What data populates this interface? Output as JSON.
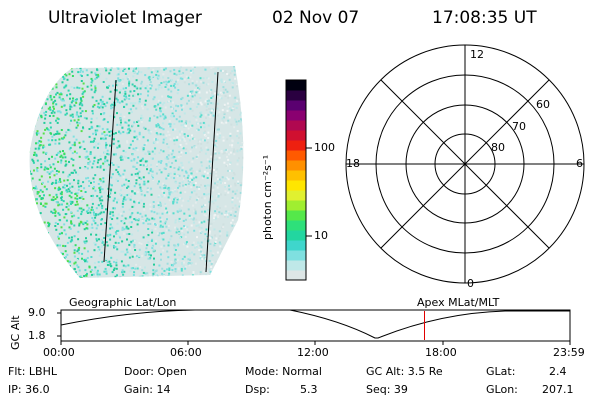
{
  "header": {
    "title": "Ultraviolet Imager",
    "date": "02 Nov 07",
    "time": "17:08:35 UT"
  },
  "colorbar": {
    "unit_label": "photon cm⁻²s⁻¹",
    "ticks": [
      "100",
      "10"
    ],
    "colors": [
      "#dde6e6",
      "#bfe8e8",
      "#7fe0e0",
      "#3fd6cc",
      "#22d6a0",
      "#2ee07a",
      "#55e84a",
      "#a0ee30",
      "#e0f030",
      "#ffe600",
      "#ffc000",
      "#ff9000",
      "#ff5a00",
      "#ee2010",
      "#d01030",
      "#b00850",
      "#8a0070",
      "#5a0070",
      "#2a0040",
      "#000010"
    ]
  },
  "polar": {
    "ring_labels": [
      "60",
      "70",
      "80"
    ],
    "clock_labels": {
      "top": "12",
      "left": "18",
      "right": "6",
      "bottom": "0"
    }
  },
  "orbit_panel": {
    "y_axis_label": "GC Alt",
    "y_ticks": [
      "9.0",
      "1.8"
    ],
    "left_title": "Geographic Lat/Lon",
    "right_title": "Apex MLat/MLT",
    "x_ticks": [
      "00:00",
      "06:00",
      "12:00",
      "18:00",
      "23:59"
    ],
    "marker_hour": 17.14
  },
  "status": {
    "flt": "Flt: LBHL",
    "ip": "IP: 36.0",
    "door": "Door: Open",
    "gain": "Gain: 14",
    "mode": "Mode: Normal",
    "dsp_label": "Dsp:",
    "dsp_value": "5.3",
    "gc_alt": "GC Alt: 3.5 Re",
    "seq": "Seq: 39",
    "glat_label": "GLat:",
    "glat_value": "2.4",
    "glon_label": "GLon:",
    "glon_value": "207.1"
  }
}
